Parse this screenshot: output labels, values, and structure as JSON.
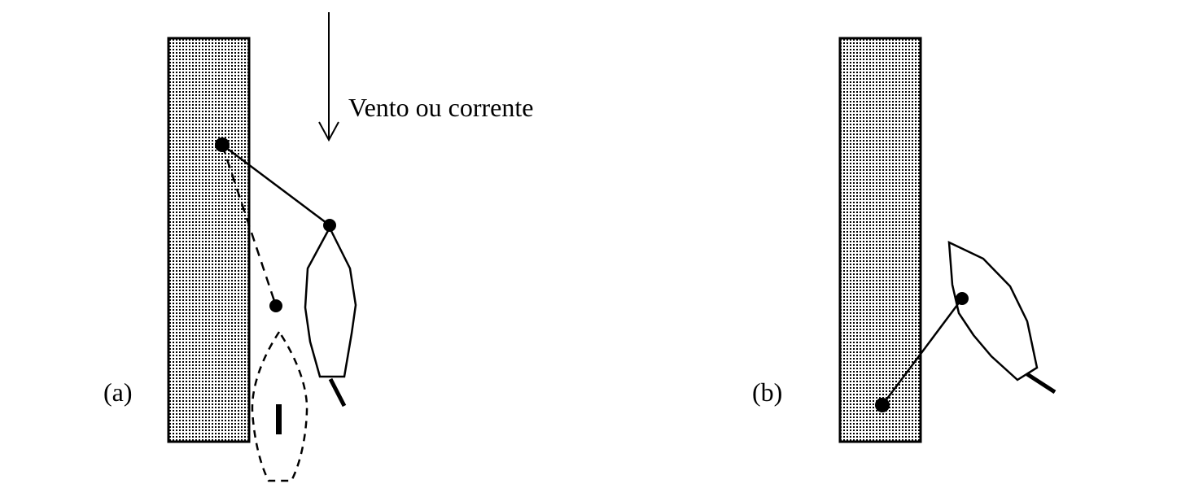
{
  "panel_a": {
    "label": "(a)",
    "arrow_label": "Vento ou corrente"
  },
  "panel_b": {
    "label": "(b)"
  },
  "colors": {
    "ink": "#000000",
    "background": "#ffffff",
    "pier_fill": "#dcdcdc"
  }
}
